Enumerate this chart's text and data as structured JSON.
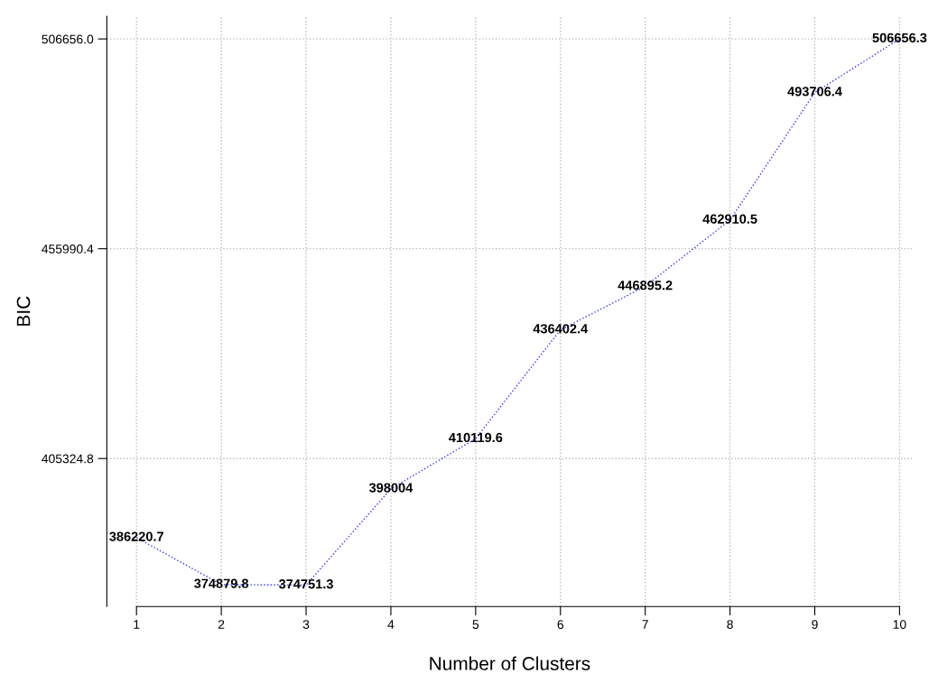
{
  "chart_data": {
    "type": "line",
    "xlabel": "Number of Clusters",
    "ylabel": "BIC",
    "x": [
      1,
      2,
      3,
      4,
      5,
      6,
      7,
      8,
      9,
      10
    ],
    "series": [
      {
        "color": "#3333ff",
        "values": [
          386220.7,
          374879.8,
          374751.3,
          398004,
          410119.6,
          436402.4,
          446895.2,
          462910.5,
          493706.4,
          506656.3
        ]
      }
    ],
    "xlim": [
      0.65,
      10.15
    ],
    "xticks": [
      1,
      2,
      3,
      4,
      5,
      6,
      7,
      8,
      9,
      10
    ],
    "ylim": [
      369585,
      512100
    ],
    "yticks": [
      {
        "value": 405324.8,
        "label": "405324.8"
      },
      {
        "value": 455990.4,
        "label": "455990.4"
      },
      {
        "value": 506656.0,
        "label": "506656.0"
      }
    ],
    "grid": true,
    "data_labels": true,
    "marker": "none",
    "line_style": "dotted",
    "legend": false
  }
}
